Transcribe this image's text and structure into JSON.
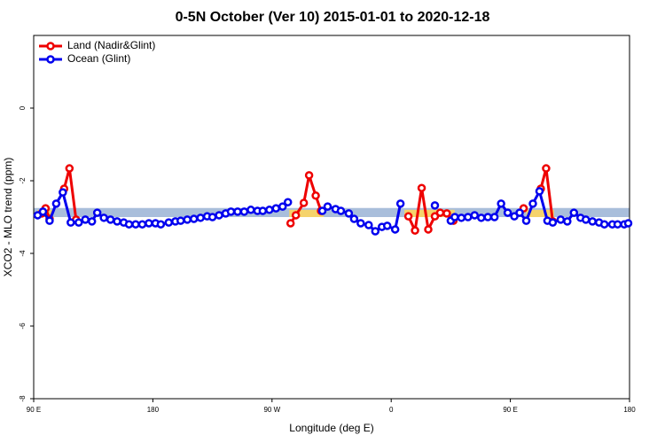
{
  "chart_data": {
    "type": "line",
    "title": "0-5N October (Ver 10)   2015-01-01 to 2020-12-18",
    "x_label": "Longitude (deg E)",
    "y_label": "XCO2 - MLO trend (ppm)",
    "xlim": [
      90,
      540
    ],
    "ylim": [
      -8,
      2
    ],
    "xticks": [
      {
        "value": 90,
        "label": "90 E"
      },
      {
        "value": 180,
        "label": "180"
      },
      {
        "value": 270,
        "label": "90 W"
      },
      {
        "value": 360,
        "label": "0"
      },
      {
        "value": 450,
        "label": "90 E"
      },
      {
        "value": 540,
        "label": "180"
      }
    ],
    "yticks": [
      -8,
      -6,
      -4,
      -2,
      0
    ],
    "legend": "top-left",
    "bands": [
      {
        "x": [
          90,
          540
        ],
        "y": [
          -3.0,
          -2.75
        ],
        "color": "#a9bedb"
      },
      {
        "x": [
          93,
          104
        ],
        "y": [
          -3.0,
          -2.8
        ],
        "color": "#f5d36b"
      },
      {
        "x": [
          283,
          309
        ],
        "y": [
          -3.0,
          -2.8
        ],
        "color": "#f5d36b"
      },
      {
        "x": [
          370,
          408
        ],
        "y": [
          -3.0,
          -2.8
        ],
        "color": "#f5d36b"
      },
      {
        "x": [
          462,
          483
        ],
        "y": [
          -3.0,
          -2.8
        ],
        "color": "#f5d36b"
      }
    ],
    "series": [
      {
        "name": "Land (Nadir&Glint)",
        "color": "#ee0000",
        "x": [
          96,
          99,
          102,
          null,
          113,
          117,
          122,
          null,
          284,
          288,
          294,
          298,
          303,
          307,
          null,
          373,
          378,
          383,
          388,
          393,
          397,
          402,
          407,
          null,
          460,
          null,
          473,
          477,
          482
        ],
        "values": [
          -2.9,
          -2.76,
          -3.05,
          null,
          -2.22,
          -1.66,
          -3.07,
          null,
          -3.17,
          -2.95,
          -2.61,
          -1.85,
          -2.41,
          -2.83,
          null,
          -2.98,
          -3.37,
          -2.2,
          -3.34,
          -2.98,
          -2.88,
          -2.9,
          -3.1,
          null,
          -2.76,
          null,
          -2.22,
          -1.66,
          -3.12
        ]
      },
      {
        "name": "Ocean (Glint)",
        "color": "#0000ee",
        "x": [
          93,
          97,
          102,
          107,
          112,
          118,
          124,
          129,
          134,
          138,
          143,
          148,
          153,
          158,
          162,
          167,
          172,
          177,
          182,
          186,
          192,
          197,
          201,
          206,
          211,
          216,
          221,
          225,
          230,
          235,
          239,
          244,
          249,
          254,
          259,
          263,
          268,
          273,
          278,
          282,
          null,
          308,
          312,
          318,
          322,
          328,
          332,
          337,
          343,
          348,
          353,
          357,
          363,
          367,
          null,
          393,
          null,
          405,
          408,
          413,
          418,
          423,
          428,
          433,
          438,
          443,
          448,
          453,
          457,
          462,
          467,
          472,
          478,
          482,
          488,
          493,
          498,
          503,
          507,
          512,
          517,
          521,
          527,
          531,
          536,
          539
        ],
        "values": [
          -2.95,
          -2.85,
          -3.1,
          -2.63,
          -2.32,
          -3.15,
          -3.15,
          -3.07,
          -3.12,
          -2.88,
          -3.02,
          -3.07,
          -3.12,
          -3.15,
          -3.2,
          -3.2,
          -3.2,
          -3.17,
          -3.17,
          -3.2,
          -3.15,
          -3.12,
          -3.1,
          -3.07,
          -3.05,
          -3.02,
          -2.98,
          -3.0,
          -2.95,
          -2.9,
          -2.85,
          -2.85,
          -2.85,
          -2.8,
          -2.83,
          -2.83,
          -2.8,
          -2.76,
          -2.71,
          -2.59,
          null,
          -2.83,
          -2.71,
          -2.78,
          -2.83,
          -2.9,
          -3.05,
          -3.17,
          -3.22,
          -3.39,
          -3.27,
          -3.24,
          -3.34,
          -2.63,
          null,
          -2.68,
          null,
          -3.1,
          -3.0,
          -3.02,
          -3.0,
          -2.95,
          -3.02,
          -3.0,
          -3.0,
          -2.63,
          -2.88,
          -2.98,
          -2.88,
          -3.1,
          -2.63,
          -2.29,
          -3.1,
          -3.15,
          -3.07,
          -3.12,
          -2.88,
          -3.02,
          -3.07,
          -3.12,
          -3.15,
          -3.2,
          -3.2,
          -3.2,
          -3.2,
          -3.17
        ]
      }
    ]
  }
}
